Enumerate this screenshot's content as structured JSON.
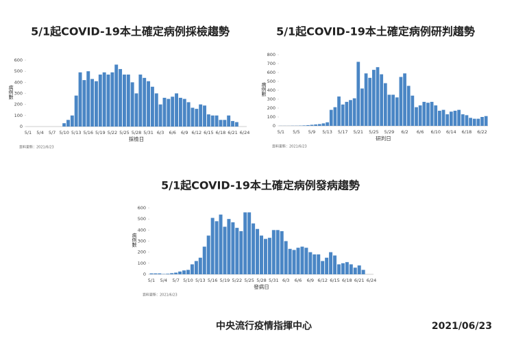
{
  "chart_data": [
    {
      "type": "bar",
      "title": "5/1起COVID-19本土確定病例採檢趨勢",
      "ylabel": "病例數",
      "xlabel": "採檢日",
      "note": "資料更新：2021/6/23",
      "color": "#4a86c5",
      "categories": [
        "5/1",
        null,
        null,
        "5/4",
        null,
        null,
        "5/7",
        null,
        null,
        "5/10",
        null,
        null,
        "5/13",
        null,
        null,
        "5/16",
        null,
        null,
        "5/19",
        null,
        null,
        "5/22",
        null,
        null,
        "5/25",
        null,
        null,
        "5/28",
        null,
        null,
        "5/31",
        null,
        null,
        "6/3",
        null,
        null,
        "6/6",
        null,
        null,
        "6/9",
        null,
        null,
        "6/12",
        null,
        null,
        "6/15",
        null,
        null,
        "6/18",
        null,
        null,
        "6/21",
        null,
        null,
        "6/24"
      ],
      "values": [
        0,
        0,
        0,
        0,
        0,
        0,
        0,
        0,
        0,
        30,
        60,
        100,
        280,
        490,
        420,
        500,
        430,
        410,
        470,
        490,
        470,
        490,
        560,
        520,
        470,
        470,
        400,
        300,
        470,
        440,
        410,
        360,
        300,
        200,
        260,
        250,
        270,
        300,
        260,
        250,
        220,
        170,
        160,
        200,
        190,
        110,
        100,
        100,
        60,
        60,
        100,
        50,
        40,
        null,
        null
      ],
      "ylim": [
        0,
        600
      ],
      "yticks": [
        0,
        100,
        200,
        300,
        400,
        500,
        600
      ]
    },
    {
      "type": "bar",
      "title": "5/1起COVID-19本土確定病例研判趨勢",
      "ylabel": "病例數",
      "xlabel": "研判日",
      "note": "資料更新：2021/6/23",
      "color": "#4a86c5",
      "categories": [
        "5/1",
        null,
        null,
        null,
        "5/5",
        null,
        null,
        null,
        "5/9",
        null,
        null,
        null,
        "5/13",
        null,
        null,
        null,
        "5/17",
        null,
        null,
        null,
        "5/21",
        null,
        null,
        null,
        "5/25",
        null,
        null,
        null,
        "5/29",
        null,
        null,
        null,
        "6/2",
        null,
        null,
        null,
        "6/6",
        null,
        null,
        null,
        "6/10",
        null,
        null,
        null,
        "6/14",
        null,
        null,
        null,
        "6/18",
        null,
        null,
        null,
        "6/22",
        null
      ],
      "values": [
        1,
        1,
        1,
        2,
        2,
        3,
        5,
        8,
        12,
        16,
        20,
        28,
        40,
        180,
        210,
        330,
        240,
        270,
        290,
        310,
        720,
        420,
        590,
        540,
        630,
        660,
        580,
        480,
        350,
        350,
        320,
        550,
        590,
        450,
        340,
        210,
        230,
        270,
        260,
        270,
        230,
        170,
        180,
        130,
        160,
        170,
        180,
        130,
        120,
        90,
        80,
        80,
        100,
        110
      ],
      "ylim": [
        0,
        800
      ],
      "yticks": [
        0,
        100,
        200,
        300,
        400,
        500,
        600,
        700,
        800
      ]
    },
    {
      "type": "bar",
      "title": "5/1起COVID-19本土確定病例發病趨勢",
      "ylabel": "病例數",
      "xlabel": "發病日",
      "note": "資料更新：2021/6/23",
      "color": "#4a86c5",
      "categories": [
        "5/1",
        null,
        null,
        "5/4",
        null,
        null,
        "5/7",
        null,
        null,
        "5/10",
        null,
        null,
        "5/13",
        null,
        null,
        "5/16",
        null,
        null,
        "5/19",
        null,
        null,
        "5/22",
        null,
        null,
        "5/25",
        null,
        null,
        "5/28",
        null,
        null,
        "5/31",
        null,
        null,
        "6/3",
        null,
        null,
        "6/6",
        null,
        null,
        "6/9",
        null,
        null,
        "6/12",
        null,
        null,
        "6/15",
        null,
        null,
        "6/18",
        null,
        null,
        "6/21",
        null,
        null,
        "6/24"
      ],
      "values": [
        8,
        8,
        8,
        3,
        5,
        10,
        15,
        25,
        35,
        40,
        90,
        120,
        150,
        250,
        350,
        510,
        480,
        540,
        430,
        500,
        470,
        420,
        390,
        560,
        560,
        460,
        410,
        350,
        320,
        330,
        400,
        400,
        390,
        300,
        230,
        220,
        240,
        250,
        240,
        200,
        180,
        180,
        120,
        150,
        200,
        170,
        90,
        100,
        110,
        90,
        60,
        80,
        40,
        null,
        null
      ],
      "ylim": [
        0,
        600
      ],
      "yticks": [
        0,
        100,
        200,
        300,
        400,
        500,
        600
      ]
    }
  ],
  "footer": {
    "org": "中央流行疫情指揮中心",
    "date": "2021/06/23"
  }
}
